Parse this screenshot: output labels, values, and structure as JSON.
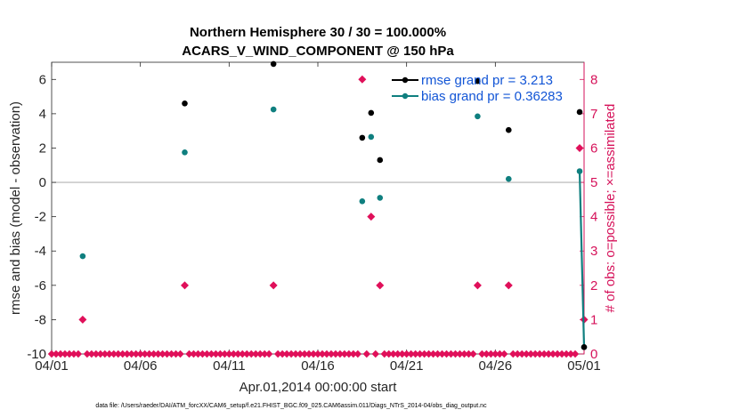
{
  "colors": {
    "rmse": "#000000",
    "bias": "#0f7f7f",
    "obs": "#e0105a",
    "right_axis": "#d6125a",
    "legend_text": "#1255d6",
    "zero_line": "#b3b3b3"
  },
  "chart_data": {
    "type": "scatter",
    "title_line1": "Northern Hemisphere 30 / 30 = 100.000%",
    "title_line2": "ACARS_V_WIND_COMPONENT @ 150 hPa",
    "xlabel": "Apr.01,2014 00:00:00 start",
    "ylabel": "rmse and bias (model - observation)",
    "ylabel_right": "# of obs: o=possible; ×=assimilated",
    "xlim": [
      1,
      31
    ],
    "ylim": [
      -10,
      7
    ],
    "ylim_right": [
      0,
      8.5
    ],
    "xticks": [
      1,
      6,
      11,
      16,
      21,
      26,
      31
    ],
    "xtick_labels": [
      "04/01",
      "04/06",
      "04/11",
      "04/16",
      "04/21",
      "04/26",
      "05/01"
    ],
    "yticks": [
      -10,
      -8,
      -6,
      -4,
      -2,
      0,
      2,
      4,
      6
    ],
    "ytick_labels": [
      "-10",
      "-8",
      "-6",
      "-4",
      "-2",
      "0",
      "2",
      "4",
      "6"
    ],
    "yticks_right": [
      0,
      1,
      2,
      3,
      4,
      5,
      6,
      7,
      8
    ],
    "ytick_labels_right": [
      "0",
      "1",
      "2",
      "3",
      "4",
      "5",
      "6",
      "7",
      "8"
    ],
    "legend": {
      "rmse": "rmse grand pr = 3.213",
      "bias": "bias grand pr = 0.36283"
    },
    "footnote": "data file: /Users/raeder/DAI/ATM_forcXX/CAM6_setup/f.e21.FHIST_BGC.f09_025.CAM6assim.011/Diags_NTrS_2014-04/obs_diag_output.nc",
    "rmse": [
      {
        "x": 8.5,
        "y": 4.6
      },
      {
        "x": 13.5,
        "y": 6.9
      },
      {
        "x": 18.5,
        "y": 2.6
      },
      {
        "x": 19.0,
        "y": 4.05
      },
      {
        "x": 19.5,
        "y": 1.3
      },
      {
        "x": 25.0,
        "y": 5.9
      },
      {
        "x": 26.75,
        "y": 3.05
      },
      {
        "x": 30.75,
        "y": 4.1
      },
      {
        "x": 31.0,
        "y": -9.6
      }
    ],
    "bias": [
      {
        "x": 2.75,
        "y": -4.3
      },
      {
        "x": 8.5,
        "y": 1.75
      },
      {
        "x": 13.5,
        "y": 4.25
      },
      {
        "x": 18.5,
        "y": -1.1
      },
      {
        "x": 19.0,
        "y": 2.65
      },
      {
        "x": 19.5,
        "y": -0.9
      },
      {
        "x": 25.0,
        "y": 3.85
      },
      {
        "x": 26.75,
        "y": 0.2
      },
      {
        "x": 30.75,
        "y": 0.65
      },
      {
        "x": 31.0,
        "y": -9.6
      }
    ],
    "bias_line": [
      {
        "x": 30.75,
        "y": 0.65
      },
      {
        "x": 31.0,
        "y": -9.6
      }
    ],
    "obs_possible": [
      {
        "x": 2.75,
        "y": 1
      },
      {
        "x": 8.5,
        "y": 2
      },
      {
        "x": 13.5,
        "y": 2
      },
      {
        "x": 18.5,
        "y": 8
      },
      {
        "x": 19.0,
        "y": 4
      },
      {
        "x": 19.5,
        "y": 2
      },
      {
        "x": 25.0,
        "y": 2
      },
      {
        "x": 26.75,
        "y": 2
      },
      {
        "x": 30.75,
        "y": 6
      },
      {
        "x": 31.0,
        "y": 1
      }
    ],
    "obs_zero_every": 0.25
  }
}
